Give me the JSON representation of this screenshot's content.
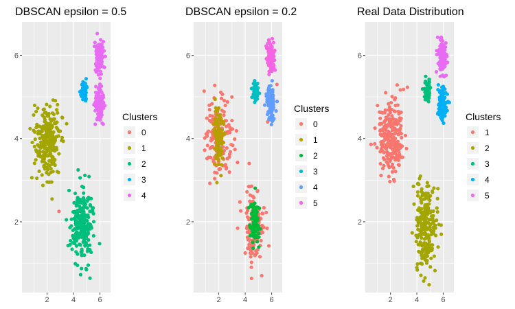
{
  "chart_data": [
    {
      "type": "scatter",
      "title": "DBSCAN epsilon = 0.5",
      "xlabel": "",
      "ylabel": "",
      "xlim": [
        0.1,
        6.8
      ],
      "ylim": [
        0.3,
        6.8
      ],
      "xticks": [
        2,
        4,
        6
      ],
      "yticks": [
        2,
        4,
        6
      ],
      "grid": true,
      "legend": {
        "title": "Clusters",
        "position": "right",
        "entries": [
          "0",
          "1",
          "2",
          "3",
          "4"
        ]
      },
      "colors": {
        "0": "#F8766D",
        "1": "#A3A500",
        "2": "#00BF7D",
        "3": "#00B0F6",
        "4": "#E76BF3"
      },
      "clusters": [
        {
          "label": "1",
          "x_mean": 2.0,
          "y_mean": 4.0,
          "x_sd": 0.5,
          "y_sd": 0.45,
          "n": 240
        },
        {
          "label": "2",
          "x_mean": 4.6,
          "y_mean": 1.9,
          "x_sd": 0.42,
          "y_sd": 0.5,
          "n": 240
        },
        {
          "label": "3",
          "x_mean": 4.8,
          "y_mean": 5.15,
          "x_sd": 0.12,
          "y_sd": 0.12,
          "n": 60
        },
        {
          "label": "4",
          "x_mean": 5.95,
          "y_mean": 5.95,
          "x_sd": 0.15,
          "y_sd": 0.18,
          "n": 120
        },
        {
          "label": "4",
          "x_mean": 5.95,
          "y_mean": 4.85,
          "x_sd": 0.15,
          "y_sd": 0.2,
          "n": 130
        }
      ],
      "noise_points": [
        [
          2.9,
          2.25
        ]
      ]
    },
    {
      "type": "scatter",
      "title": "DBSCAN epsilon = 0.2",
      "xlabel": "",
      "ylabel": "",
      "xlim": [
        0.1,
        6.8
      ],
      "ylim": [
        0.3,
        6.8
      ],
      "xticks": [
        2,
        4,
        6
      ],
      "yticks": [
        2,
        4,
        6
      ],
      "grid": true,
      "legend": {
        "title": "Clusters",
        "position": "right",
        "entries": [
          "0",
          "1",
          "2",
          "3",
          "4",
          "5"
        ]
      },
      "colors": {
        "0": "#F8766D",
        "1": "#B79F00",
        "2": "#00BA38",
        "3": "#00BFC4",
        "4": "#619CFF",
        "5": "#F564E3"
      },
      "clusters": [
        {
          "label": "0",
          "x_mean": 2.0,
          "y_mean": 4.0,
          "x_sd": 0.5,
          "y_sd": 0.45,
          "n": 140
        },
        {
          "label": "1",
          "x_mean": 2.0,
          "y_mean": 4.0,
          "x_sd": 0.2,
          "y_sd": 0.35,
          "n": 100
        },
        {
          "label": "0",
          "x_mean": 4.6,
          "y_mean": 1.9,
          "x_sd": 0.42,
          "y_sd": 0.5,
          "n": 130
        },
        {
          "label": "2",
          "x_mean": 4.7,
          "y_mean": 2.0,
          "x_sd": 0.18,
          "y_sd": 0.3,
          "n": 110
        },
        {
          "label": "3",
          "x_mean": 4.8,
          "y_mean": 5.15,
          "x_sd": 0.12,
          "y_sd": 0.12,
          "n": 60
        },
        {
          "label": "5",
          "x_mean": 5.95,
          "y_mean": 5.95,
          "x_sd": 0.15,
          "y_sd": 0.18,
          "n": 120
        },
        {
          "label": "4",
          "x_mean": 5.95,
          "y_mean": 4.85,
          "x_sd": 0.15,
          "y_sd": 0.2,
          "n": 130
        }
      ],
      "noise_points": [
        [
          6.4,
          5.3
        ],
        [
          5.7,
          4.4
        ],
        [
          4.3,
          3.4
        ]
      ]
    },
    {
      "type": "scatter",
      "title": "Real Data Distribution",
      "xlabel": "",
      "ylabel": "",
      "xlim": [
        0.1,
        6.8
      ],
      "ylim": [
        0.3,
        6.8
      ],
      "xticks": [
        2,
        4,
        6
      ],
      "yticks": [
        2,
        4,
        6
      ],
      "grid": true,
      "legend": {
        "title": "Clusters",
        "position": "right",
        "entries": [
          "1",
          "2",
          "3",
          "4",
          "5"
        ]
      },
      "colors": {
        "1": "#F8766D",
        "2": "#A3A500",
        "3": "#00BF7D",
        "4": "#00B0F6",
        "5": "#E76BF3"
      },
      "clusters": [
        {
          "label": "1",
          "x_mean": 2.0,
          "y_mean": 4.0,
          "x_sd": 0.5,
          "y_sd": 0.45,
          "n": 240
        },
        {
          "label": "2",
          "x_mean": 4.6,
          "y_mean": 1.9,
          "x_sd": 0.42,
          "y_sd": 0.5,
          "n": 240
        },
        {
          "label": "3",
          "x_mean": 4.8,
          "y_mean": 5.15,
          "x_sd": 0.12,
          "y_sd": 0.12,
          "n": 60
        },
        {
          "label": "4",
          "x_mean": 5.95,
          "y_mean": 4.85,
          "x_sd": 0.15,
          "y_sd": 0.2,
          "n": 130
        },
        {
          "label": "5",
          "x_mean": 5.95,
          "y_mean": 5.95,
          "x_sd": 0.15,
          "y_sd": 0.18,
          "n": 120
        }
      ],
      "noise_points": []
    }
  ]
}
